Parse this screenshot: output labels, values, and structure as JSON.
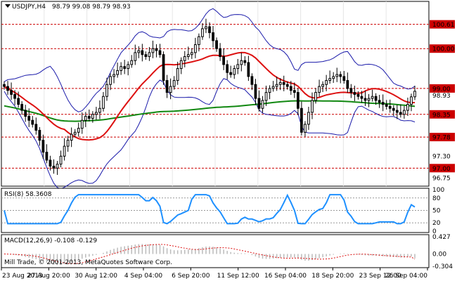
{
  "header": {
    "symbol_timeframe": "USDJPY,H4",
    "ohlc": "98.79 99.08 98.79 98.93"
  },
  "main_panel": {
    "ylim": [
      96.6,
      101.15
    ],
    "price_ticks": [
      "100.61",
      "100.00",
      "99.00",
      "98.35",
      "97.78",
      "97.00"
    ],
    "minor_ticks": [
      "97.30",
      "96.75"
    ],
    "hidden_tick": "98.93",
    "levels": [
      {
        "value": 100.61,
        "label": "100.61",
        "color": "#cc0000"
      },
      {
        "value": 100.0,
        "label": "100.00",
        "color": "#cc0000"
      },
      {
        "value": 99.0,
        "label": "99.00",
        "color": "#cc0000"
      },
      {
        "value": 98.35,
        "label": "98.35",
        "color": "#cc0000"
      },
      {
        "value": 97.78,
        "label": "97.78",
        "color": "#cc0000"
      },
      {
        "value": 97.0,
        "label": "97.00",
        "color": "#cc0000"
      }
    ]
  },
  "rsi_panel": {
    "title": "RSI(8) 58.3608",
    "ticks": [
      "100",
      "80",
      "50",
      "20",
      "0"
    ],
    "levels": [
      80,
      50,
      20
    ]
  },
  "macd_panel": {
    "title": "MACD(12,26,9) -0.108 -0.129",
    "ticks": [
      "0.427",
      "0.00",
      "-0.304"
    ],
    "ylim": [
      -0.304,
      0.427
    ]
  },
  "footer": {
    "copyright": "Mill Trade, © 2001-2013, MetaQuotes Software Corp."
  },
  "x_axis": {
    "labels": [
      "23 Aug 2013",
      "27 Aug 20:00",
      "30 Aug 12:00",
      "4 Sep 04:00",
      "6 Sep 20:00",
      "11 Sep 12:00",
      "16 Sep 04:00",
      "18 Sep 20:00",
      "23 Sep 12:00",
      "26 Sep 04:00"
    ]
  },
  "colors": {
    "bollinger": "#1a1aaa",
    "ma_fast": "#dd1111",
    "ma_slow": "#118811",
    "rsi": "#1e90ff",
    "macd_hist": "#bbbbbb",
    "macd_signal": "#dd1111",
    "level_box": "#cc0000"
  },
  "chart_data": {
    "type": "candlestick",
    "title": "USDJPY,H4",
    "close": [
      99.05,
      98.95,
      98.85,
      98.75,
      98.6,
      98.45,
      98.3,
      98.2,
      98.1,
      97.95,
      97.7,
      97.4,
      97.2,
      97.05,
      97.0,
      97.1,
      97.3,
      97.55,
      97.7,
      97.85,
      97.9,
      98.0,
      98.2,
      98.3,
      98.25,
      98.35,
      98.4,
      98.5,
      98.8,
      99.1,
      99.3,
      99.35,
      99.45,
      99.55,
      99.5,
      99.6,
      99.7,
      99.9,
      99.95,
      99.85,
      99.8,
      99.9,
      100.0,
      99.95,
      99.85,
      99.2,
      98.9,
      99.05,
      99.2,
      99.5,
      99.7,
      99.8,
      99.85,
      99.9,
      100.1,
      100.3,
      100.5,
      100.55,
      100.4,
      100.2,
      100.0,
      99.8,
      99.6,
      99.4,
      99.35,
      99.5,
      99.6,
      99.7,
      99.65,
      99.3,
      99.1,
      98.75,
      98.5,
      98.7,
      98.9,
      99.0,
      99.05,
      99.1,
      99.15,
      99.1,
      99.05,
      98.95,
      98.9,
      98.5,
      97.9,
      98.1,
      98.4,
      98.7,
      98.9,
      99.05,
      99.1,
      99.2,
      99.25,
      99.3,
      99.35,
      99.3,
      99.2,
      99.0,
      98.9,
      98.85,
      98.8,
      98.75,
      98.7,
      98.75,
      98.8,
      98.7,
      98.65,
      98.6,
      98.55,
      98.5,
      98.45,
      98.4,
      98.35,
      98.45,
      98.6,
      98.79,
      98.93
    ],
    "series": [
      {
        "name": "RSI(8)",
        "last": 58.3608
      },
      {
        "name": "MACD(12,26,9)",
        "values": [
          -0.108,
          -0.129
        ]
      }
    ]
  }
}
